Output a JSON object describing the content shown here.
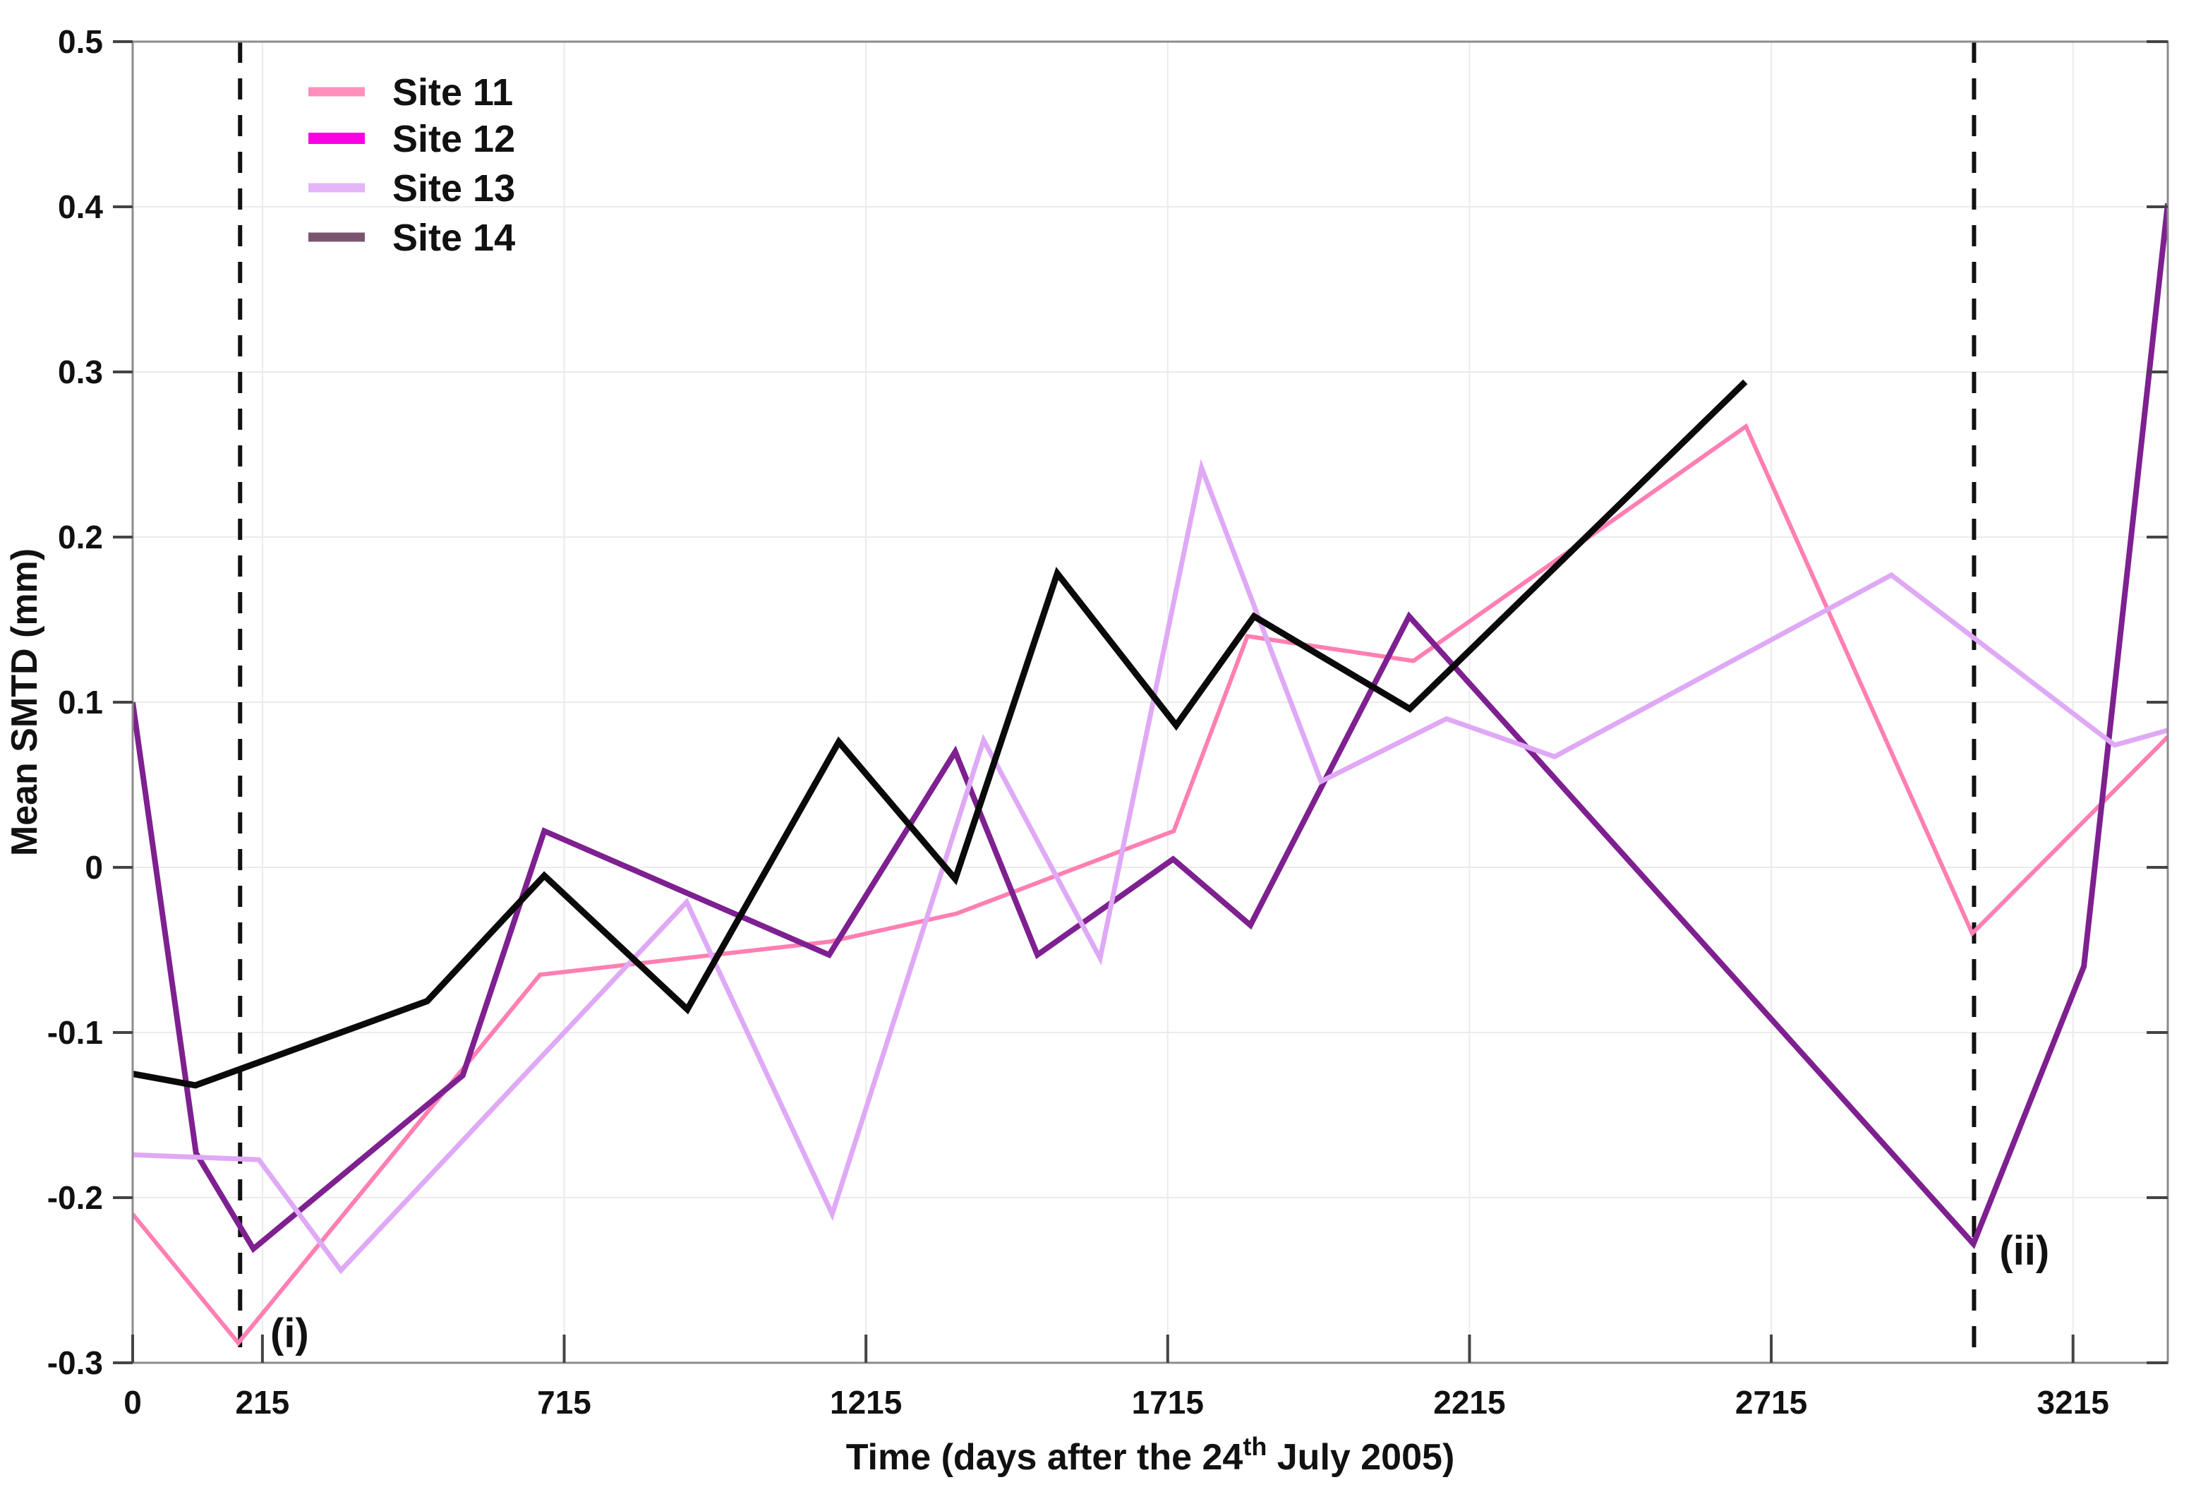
{
  "figure": {
    "background": "#ffffff",
    "plot_background": "#ffffff"
  },
  "chart_data": {
    "type": "line",
    "title": "",
    "ylabel": "Mean SMTD (mm)",
    "xlabel_parts": {
      "prefix": "Time (days after the 24",
      "superscript": "th",
      "suffix": " July 2005)"
    },
    "xlim": [
      0,
      3372
    ],
    "ylim": [
      -0.3,
      0.5
    ],
    "x_ticks": [
      0,
      215,
      715,
      1215,
      1715,
      2215,
      2715,
      3215
    ],
    "x_tick_labels": [
      "0",
      "215",
      "715",
      "1215",
      "1715",
      "2215",
      "2715",
      "3215"
    ],
    "y_ticks": [
      0.5,
      0.4,
      0.3,
      0.2,
      0.1,
      0,
      -0.1,
      -0.2,
      -0.3
    ],
    "y_tick_labels": [
      "0.5",
      "0.4",
      "0.3",
      "0.2",
      "0.1",
      "0",
      "-0.1",
      "-0.2",
      "-0.3"
    ],
    "grid": true,
    "grid_color": "#ebebeb",
    "axis_color": "#8c8c8c",
    "tick_color": "#444444",
    "text_color": "#111111",
    "legend_position": "top-left",
    "annotation_color": "#111111",
    "annotations": [
      {
        "id": "i",
        "label": "(i)",
        "line_x": 178,
        "label_x": 228,
        "label_y": -0.282
      },
      {
        "id": "ii",
        "label": "(ii)",
        "line_x": 3051,
        "label_x": 3093,
        "label_y": -0.232
      }
    ],
    "series": [
      {
        "name": "Site 11",
        "line_color": "#FF7FB2",
        "legend_color": "#FF8FBC",
        "line_width": 6,
        "points": [
          [
            0,
            -0.21
          ],
          [
            175,
            -0.288
          ],
          [
            675,
            -0.065
          ],
          [
            1155,
            -0.045
          ],
          [
            1365,
            -0.028
          ],
          [
            1725,
            0.022
          ],
          [
            1847,
            0.14
          ],
          [
            2122,
            0.125
          ],
          [
            2673,
            0.267
          ],
          [
            3048,
            -0.04
          ],
          [
            3372,
            0.079
          ]
        ]
      },
      {
        "name": "Site 12",
        "line_color": "#7E2090",
        "legend_color": "#FB00E2",
        "line_width": 8,
        "points": [
          [
            0,
            0.1
          ],
          [
            105,
            -0.173
          ],
          [
            200,
            -0.231
          ],
          [
            547,
            -0.126
          ],
          [
            682,
            0.022
          ],
          [
            1154,
            -0.053
          ],
          [
            1363,
            0.07
          ],
          [
            1499,
            -0.053
          ],
          [
            1724,
            0.005
          ],
          [
            1852,
            -0.035
          ],
          [
            2115,
            0.152
          ],
          [
            3050,
            -0.228
          ],
          [
            3233,
            -0.06
          ],
          [
            3372,
            0.402
          ]
        ]
      },
      {
        "name": "Site 13",
        "line_color": "#DFA9F6",
        "legend_color": "#E4B5F8",
        "line_width": 7,
        "points": [
          [
            0,
            -0.174
          ],
          [
            209,
            -0.177
          ],
          [
            345,
            -0.244
          ],
          [
            918,
            -0.021
          ],
          [
            1159,
            -0.21
          ],
          [
            1410,
            0.077
          ],
          [
            1603,
            -0.055
          ],
          [
            1771,
            0.242
          ],
          [
            1969,
            0.052
          ],
          [
            2177,
            0.09
          ],
          [
            2356,
            0.067
          ],
          [
            2914,
            0.177
          ],
          [
            3284,
            0.074
          ],
          [
            3372,
            0.083
          ]
        ]
      },
      {
        "name": "Site 14",
        "line_color": "#0a0a0a",
        "legend_color": "#7B5570",
        "line_width": 9,
        "points": [
          [
            0,
            -0.125
          ],
          [
            104,
            -0.132
          ],
          [
            488,
            -0.081
          ],
          [
            682,
            -0.005
          ],
          [
            919,
            -0.086
          ],
          [
            1170,
            0.076
          ],
          [
            1363,
            -0.007
          ],
          [
            1532,
            0.178
          ],
          [
            1729,
            0.086
          ],
          [
            1858,
            0.152
          ],
          [
            2116,
            0.096
          ],
          [
            2672,
            0.294
          ]
        ]
      }
    ]
  }
}
